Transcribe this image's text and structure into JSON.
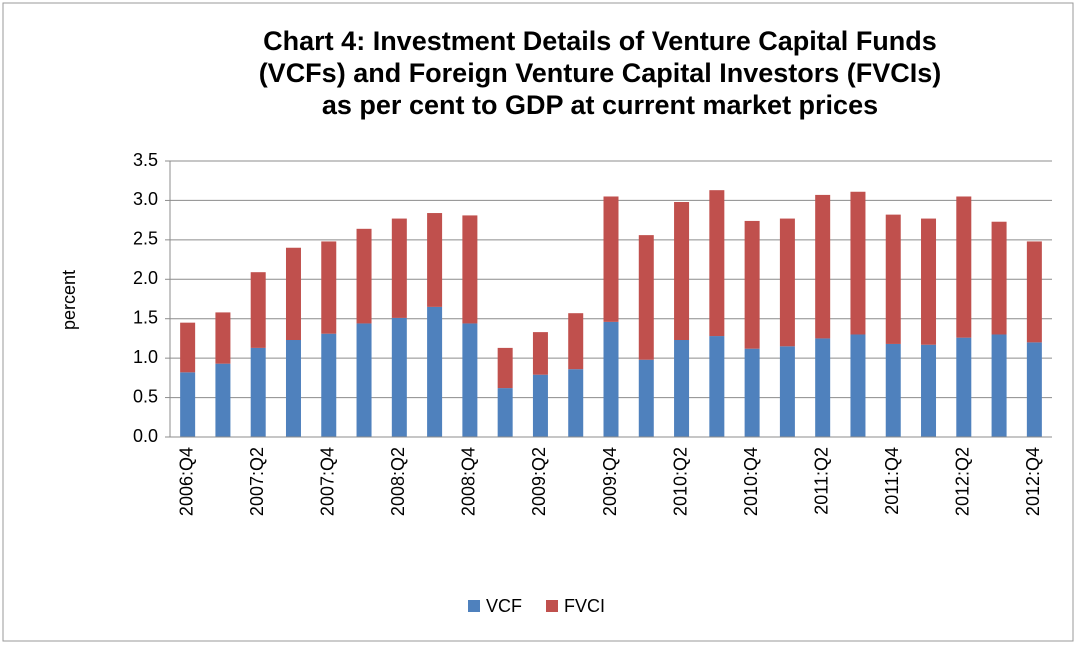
{
  "chart_data": {
    "type": "stacked_bar",
    "title": [
      "Chart  4: Investment Details of Venture Capital Funds",
      "(VCFs) and Foreign Venture Capital Investors (FVCIs)",
      "as per cent to GDP at current market prices"
    ],
    "ylabel": "percent",
    "categories": [
      "2006:Q4",
      null,
      "2007:Q2",
      null,
      "2007:Q4",
      null,
      "2008:Q2",
      null,
      "2008:Q4",
      null,
      "2009:Q2",
      null,
      "2009:Q4",
      null,
      "2010:Q2",
      null,
      "2010:Q4",
      null,
      "2011:Q2",
      null,
      "2011:Q4",
      null,
      "2012:Q2",
      null,
      "2012:Q4"
    ],
    "series": [
      {
        "name": "VCF",
        "color": "#4f81bd",
        "values": [
          0.82,
          0.93,
          1.13,
          1.23,
          1.31,
          1.44,
          1.51,
          1.65,
          1.44,
          0.62,
          0.79,
          0.86,
          1.46,
          0.98,
          1.23,
          1.28,
          1.12,
          1.15,
          1.25,
          1.3,
          1.18,
          1.17,
          1.26,
          1.3,
          1.2
        ]
      },
      {
        "name": "FVCI",
        "color": "#c0504d",
        "values": [
          0.63,
          0.65,
          0.96,
          1.17,
          1.17,
          1.2,
          1.26,
          1.19,
          1.37,
          0.51,
          0.54,
          0.71,
          1.59,
          1.58,
          1.75,
          1.85,
          1.62,
          1.62,
          1.82,
          1.81,
          1.64,
          1.6,
          1.79,
          1.43,
          1.28
        ]
      }
    ],
    "ylim": [
      0,
      3.5
    ],
    "yticks": [
      {
        "value": 0,
        "label": "0.0"
      },
      0.5,
      {
        "value": 1,
        "label": "1.0"
      },
      1.5,
      {
        "value": 2,
        "label": "2.0"
      },
      2.5,
      {
        "value": 3,
        "label": "3.0"
      },
      3.5
    ],
    "grid": true,
    "legend": "bottom"
  }
}
